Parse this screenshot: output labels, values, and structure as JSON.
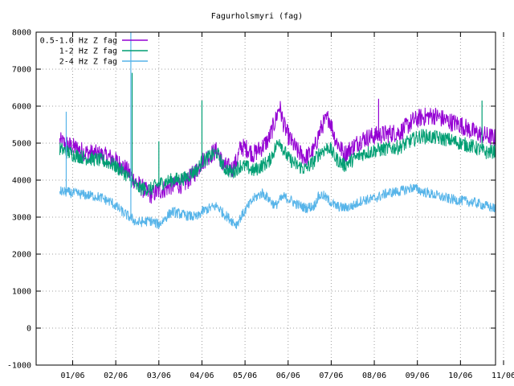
{
  "chart_data": {
    "type": "line",
    "title": "Fagurholsmyri (fag)",
    "xlabel": "",
    "ylabel": "",
    "x_tick_labels": [
      "01/06",
      "02/06",
      "03/06",
      "04/06",
      "05/06",
      "06/06",
      "07/06",
      "08/06",
      "09/06",
      "10/06",
      "11/06"
    ],
    "ylim": [
      -1000,
      8000
    ],
    "y_ticks": [
      -1000,
      0,
      1000,
      2000,
      3000,
      4000,
      5000,
      6000,
      7000,
      8000
    ],
    "grid": true,
    "legend_position": "top-left",
    "x_unit": "month index (0 = 01/06 tick, 1 = 02/06 tick, ...)",
    "xlim": [
      -0.3,
      10.4
    ],
    "series": [
      {
        "name": "0.5-1.0 Hz Z fag",
        "color": "#9400d3",
        "x": [
          -0.5,
          -0.3,
          0.0,
          0.3,
          0.6,
          0.9,
          1.2,
          1.5,
          1.8,
          2.0,
          2.3,
          2.6,
          2.9,
          3.0,
          3.2,
          3.35,
          3.5,
          3.7,
          3.8,
          3.9,
          4.05,
          4.2,
          4.4,
          4.55,
          4.7,
          4.8,
          4.9,
          5.0,
          5.2,
          5.4,
          5.6,
          5.7,
          5.8,
          5.95,
          6.1,
          6.3,
          6.5,
          6.7,
          7.0,
          7.3,
          7.6,
          7.9,
          8.1,
          8.4,
          8.7,
          9.0,
          9.3,
          9.6,
          9.9,
          10.1,
          10.3
        ],
        "values": [
          5200,
          5050,
          4900,
          4750,
          4700,
          4600,
          4350,
          3900,
          3600,
          3700,
          3850,
          3900,
          4300,
          4500,
          4700,
          4800,
          4400,
          4300,
          4500,
          4900,
          4850,
          4700,
          4900,
          5100,
          5600,
          6000,
          5500,
          5200,
          4800,
          4600,
          4800,
          5200,
          5500,
          5700,
          5100,
          4700,
          4900,
          5100,
          5200,
          5250,
          5300,
          5600,
          5700,
          5750,
          5600,
          5500,
          5300,
          5200,
          5100,
          5050,
          5000
        ]
      },
      {
        "name": "1-2 Hz Z fag",
        "color": "#009e73",
        "x": [
          -0.5,
          -0.3,
          0.0,
          0.3,
          0.6,
          0.9,
          1.2,
          1.5,
          1.8,
          2.0,
          2.3,
          2.6,
          2.9,
          3.0,
          3.2,
          3.35,
          3.5,
          3.7,
          3.8,
          3.9,
          4.05,
          4.2,
          4.4,
          4.55,
          4.7,
          4.8,
          4.9,
          5.0,
          5.2,
          5.4,
          5.6,
          5.7,
          5.8,
          5.95,
          6.1,
          6.3,
          6.5,
          6.7,
          7.0,
          7.3,
          7.6,
          7.9,
          8.1,
          8.4,
          8.7,
          9.0,
          9.3,
          9.6,
          9.9,
          10.1,
          10.3
        ],
        "values": [
          4950,
          4850,
          4700,
          4600,
          4550,
          4450,
          4200,
          3800,
          3750,
          3900,
          4000,
          4050,
          4300,
          4500,
          4650,
          4750,
          4350,
          4200,
          4300,
          4400,
          4350,
          4250,
          4400,
          4500,
          4850,
          5100,
          4800,
          4600,
          4400,
          4300,
          4500,
          4700,
          4800,
          4900,
          4600,
          4400,
          4550,
          4700,
          4800,
          4850,
          4900,
          5100,
          5200,
          5150,
          5100,
          5000,
          4900,
          4750,
          4800,
          4800,
          4750
        ]
      },
      {
        "name": "2-4 Hz Z fag",
        "color": "#56b4e9",
        "x": [
          -0.5,
          -0.3,
          0.0,
          0.3,
          0.6,
          0.9,
          1.2,
          1.5,
          1.8,
          2.0,
          2.3,
          2.6,
          2.9,
          3.0,
          3.2,
          3.35,
          3.5,
          3.7,
          3.8,
          3.9,
          4.05,
          4.2,
          4.4,
          4.55,
          4.7,
          4.8,
          4.9,
          5.0,
          5.2,
          5.4,
          5.6,
          5.7,
          5.8,
          5.95,
          6.1,
          6.3,
          6.5,
          6.7,
          7.0,
          7.3,
          7.6,
          7.9,
          8.1,
          8.4,
          8.7,
          9.0,
          9.3,
          9.6,
          9.9,
          10.1,
          10.3
        ],
        "values": [
          3600,
          3700,
          3650,
          3600,
          3550,
          3400,
          3100,
          2850,
          2900,
          2800,
          3150,
          3050,
          3000,
          3150,
          3250,
          3300,
          3100,
          2900,
          2800,
          3000,
          3250,
          3500,
          3650,
          3500,
          3300,
          3450,
          3550,
          3500,
          3350,
          3250,
          3300,
          3550,
          3600,
          3450,
          3300,
          3250,
          3300,
          3450,
          3500,
          3650,
          3700,
          3800,
          3700,
          3600,
          3500,
          3450,
          3400,
          3300,
          3200,
          3150,
          3150
        ]
      }
    ],
    "spikes": [
      {
        "series": "2-4 Hz Z fag",
        "x": 1.35,
        "y": 8000
      },
      {
        "series": "1-2 Hz Z fag",
        "x": 1.38,
        "y": 6900
      },
      {
        "series": "2-4 Hz Z fag",
        "x": -0.15,
        "y": 5850
      },
      {
        "series": "1-2 Hz Z fag",
        "x": 3.0,
        "y": 6150
      },
      {
        "series": "0.5-1.0 Hz Z fag",
        "x": 7.1,
        "y": 6200
      },
      {
        "series": "1-2 Hz Z fag",
        "x": 9.5,
        "y": 6150
      },
      {
        "series": "1-2 Hz Z fag",
        "x": 2.0,
        "y": 5050
      }
    ]
  }
}
